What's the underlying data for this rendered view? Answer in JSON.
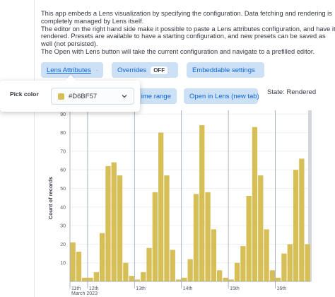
{
  "description": [
    "This app embeds a Lens visualization by specifying the configuration. Data fetching and rendering is",
    "completely managed by Lens itself.",
    "The editor on the right hand side make it possible to paste a Lens attributes configuration, and have it",
    "rendered. Presets are available to have a starting configuration, and new presets can be saved as",
    "well (not persisted).",
    "The Open with Lens button will take the current configuration and navigate to a prefilled editor."
  ],
  "buttons": {
    "lens_attributes": "Lens Attributes",
    "overrides": "Overrides",
    "overrides_badge": "OFF",
    "embeddable_settings": "Embeddable settings",
    "time_range": "ime range",
    "open_in_lens": "Open in Lens (new tab)"
  },
  "state": "State: Rendered",
  "popover": {
    "label": "Pick color",
    "select_value": "#D6BF57"
  },
  "chart": {
    "type": "bar",
    "y_title": "Count of records",
    "color": "#D6BF57",
    "categories": [
      "11th",
      null,
      null,
      "12th",
      null,
      null,
      null,
      null,
      null,
      null,
      null,
      "13th",
      null,
      null,
      null,
      null,
      null,
      null,
      null,
      "14th",
      null,
      null,
      null,
      null,
      null,
      null,
      null,
      "15th",
      null,
      null,
      null,
      null,
      null,
      null,
      null,
      "16th",
      null,
      null,
      null,
      null,
      null
    ],
    "x_sublabel": "March 2023",
    "values": [
      21,
      16,
      2,
      2,
      5,
      26,
      62,
      64,
      57,
      10,
      3,
      1,
      5,
      18,
      48,
      80,
      57,
      17,
      1,
      2,
      12,
      47,
      84,
      48,
      28,
      6,
      2,
      1,
      10,
      19,
      46,
      83,
      57,
      28,
      6,
      2,
      15,
      20,
      60,
      66,
      20
    ],
    "ylim": [
      0,
      92
    ],
    "yticks": [
      10,
      20,
      30,
      40,
      50,
      60,
      70,
      80,
      90
    ]
  }
}
